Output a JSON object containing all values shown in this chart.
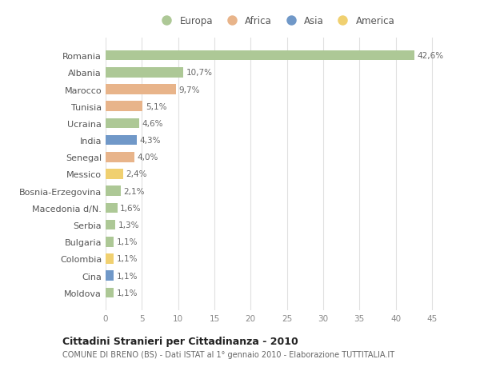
{
  "countries": [
    "Romania",
    "Albania",
    "Marocco",
    "Tunisia",
    "Ucraina",
    "India",
    "Senegal",
    "Messico",
    "Bosnia-Erzegovina",
    "Macedonia d/N.",
    "Serbia",
    "Bulgaria",
    "Colombia",
    "Cina",
    "Moldova"
  ],
  "values": [
    42.6,
    10.7,
    9.7,
    5.1,
    4.6,
    4.3,
    4.0,
    2.4,
    2.1,
    1.6,
    1.3,
    1.1,
    1.1,
    1.1,
    1.1
  ],
  "labels": [
    "42,6%",
    "10,7%",
    "9,7%",
    "5,1%",
    "4,6%",
    "4,3%",
    "4,0%",
    "2,4%",
    "2,1%",
    "1,6%",
    "1,3%",
    "1,1%",
    "1,1%",
    "1,1%",
    "1,1%"
  ],
  "continents": [
    "Europa",
    "Europa",
    "Africa",
    "Africa",
    "Europa",
    "Asia",
    "Africa",
    "America",
    "Europa",
    "Europa",
    "Europa",
    "Europa",
    "America",
    "Asia",
    "Europa"
  ],
  "colors": {
    "Europa": "#adc896",
    "Africa": "#e8b48a",
    "Asia": "#7098c8",
    "America": "#f0d070"
  },
  "legend_order": [
    "Europa",
    "Africa",
    "Asia",
    "America"
  ],
  "title": "Cittadini Stranieri per Cittadinanza - 2010",
  "subtitle": "COMUNE DI BRENO (BS) - Dati ISTAT al 1° gennaio 2010 - Elaborazione TUTTITALIA.IT",
  "xlim": [
    0,
    47
  ],
  "xticks": [
    0,
    5,
    10,
    15,
    20,
    25,
    30,
    35,
    40,
    45
  ],
  "bg_color": "#ffffff",
  "grid_color": "#e0e0e0",
  "bar_height": 0.6
}
